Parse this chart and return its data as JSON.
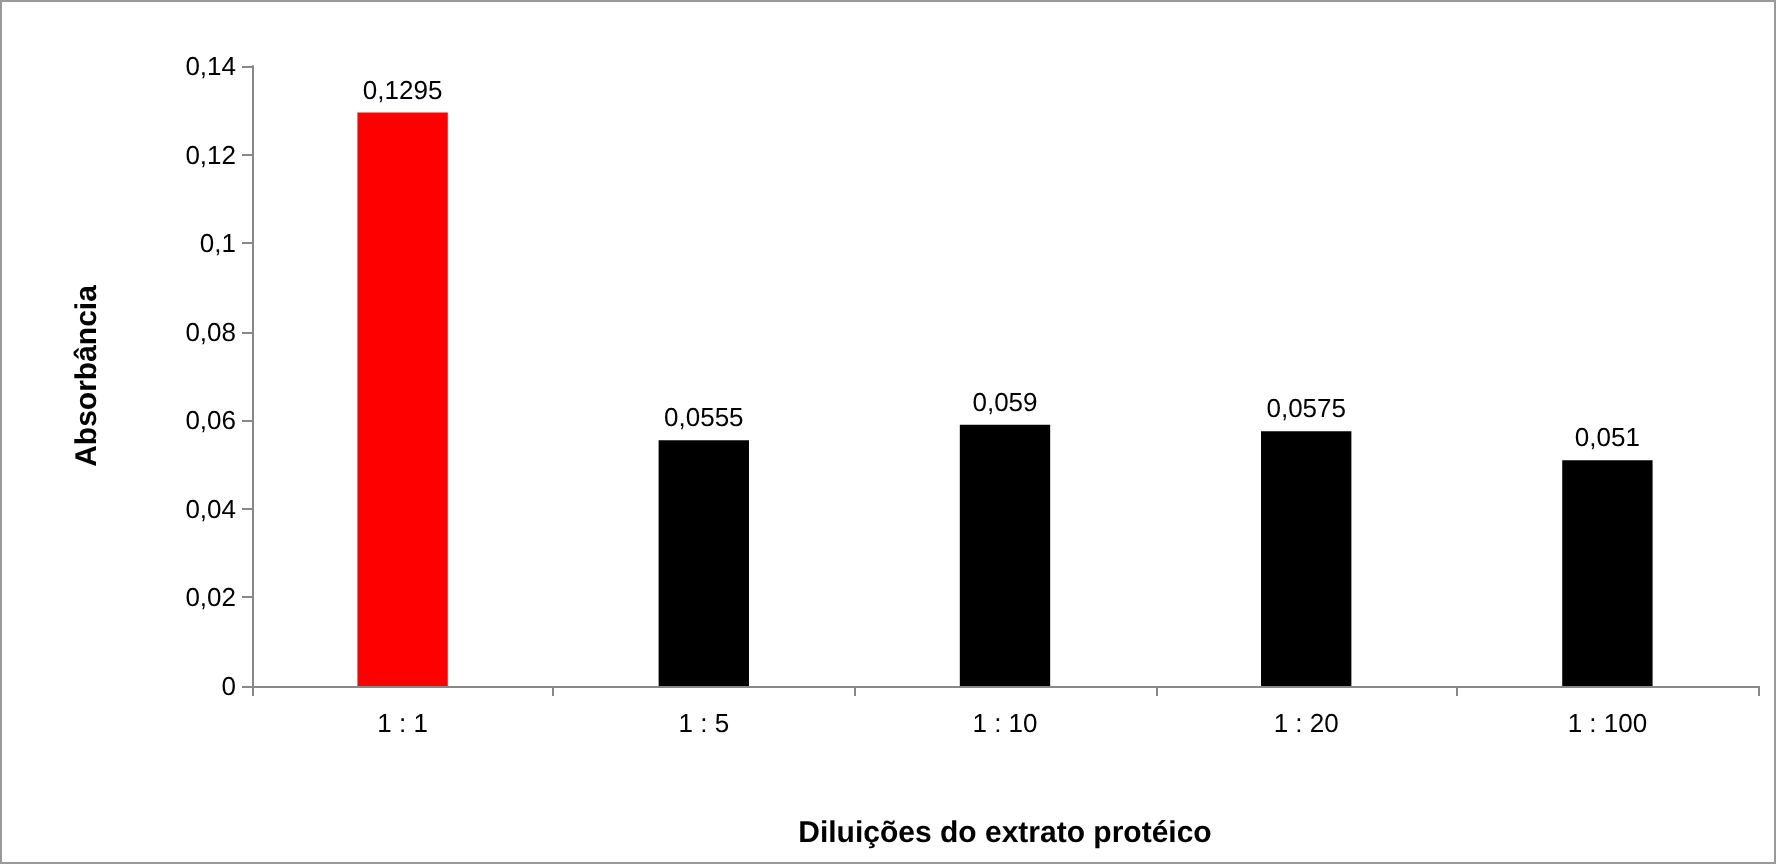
{
  "chart_data": {
    "type": "bar",
    "xlabel": "Diluições do extrato protéico",
    "ylabel": "Absorbância",
    "categories": [
      "1 : 1",
      "1 : 5",
      "1 : 10",
      "1 : 20",
      "1 : 100"
    ],
    "values": [
      0.1295,
      0.0555,
      0.059,
      0.0575,
      0.051
    ],
    "colors": [
      "#ff0000",
      "#000000",
      "#000000",
      "#000000",
      "#000000"
    ],
    "value_labels": [
      "0,1295",
      "0,0555",
      "0,059",
      "0,0575",
      "0,051"
    ],
    "ylim": [
      0,
      0.14
    ],
    "yticks": [
      {
        "value": 0,
        "label": "0"
      },
      {
        "value": 0.02,
        "label": "0,02"
      },
      {
        "value": 0.04,
        "label": "0,04"
      },
      {
        "value": 0.06,
        "label": "0,06"
      },
      {
        "value": 0.08,
        "label": "0,08"
      },
      {
        "value": 0.1,
        "label": "0,1"
      },
      {
        "value": 0.12,
        "label": "0,12"
      },
      {
        "value": 0.14,
        "label": "0,14"
      }
    ],
    "grid": false
  }
}
